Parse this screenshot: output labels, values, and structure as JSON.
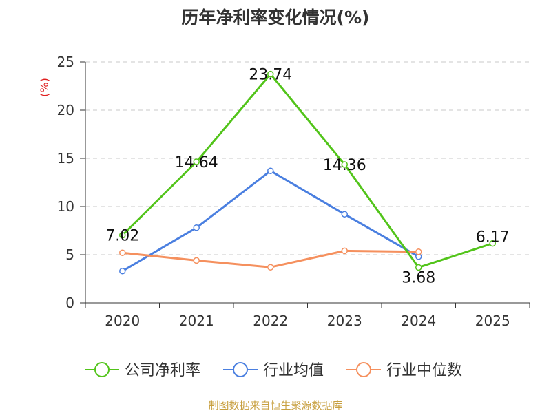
{
  "chart_data": {
    "type": "line",
    "title": "历年净利率变化情况(%)",
    "ylabel": "(%)",
    "xlabel": "",
    "categories": [
      "2020",
      "2021",
      "2022",
      "2023",
      "2024",
      "2025"
    ],
    "ylim": [
      0,
      25
    ],
    "yticks": [
      0,
      5,
      10,
      15,
      20,
      25
    ],
    "grid": true,
    "legend_position": "bottom",
    "series": [
      {
        "name": "公司净利率",
        "color": "#52c41a",
        "values": [
          7.02,
          14.64,
          23.74,
          14.36,
          3.68,
          6.17
        ],
        "data_labels": [
          "7.02",
          "14.64",
          "23.74",
          "14.36",
          "3.68",
          "6.17"
        ]
      },
      {
        "name": "行业均值",
        "color": "#4a7fe0",
        "values": [
          3.3,
          7.8,
          13.7,
          9.2,
          4.8,
          null
        ]
      },
      {
        "name": "行业中位数",
        "color": "#f5905e",
        "values": [
          5.2,
          4.4,
          3.7,
          5.4,
          5.3,
          null
        ]
      }
    ]
  },
  "footer": {
    "source": "制图数据来自恒生聚源数据库"
  },
  "colors": {
    "ylabel": "#e02020",
    "grid": "#c8c8c8",
    "axis": "#333333",
    "footer": "#c8a040"
  }
}
